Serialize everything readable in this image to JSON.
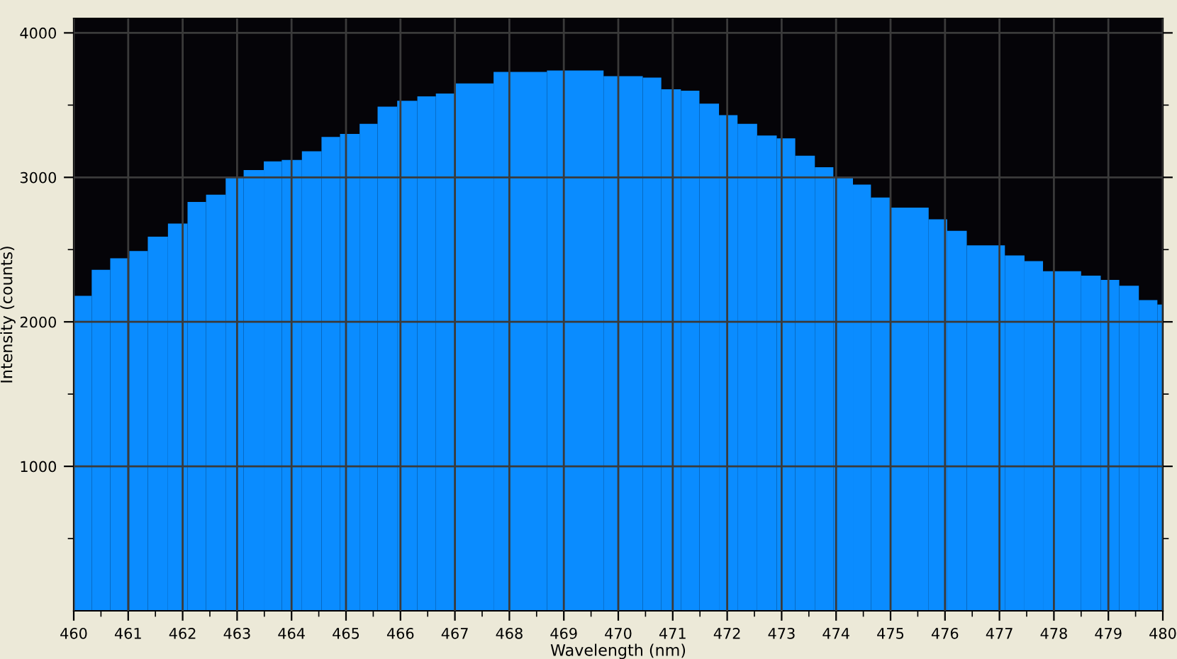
{
  "chart_data": {
    "type": "histogram",
    "xlabel": "Wavelength (nm)",
    "ylabel": "Intensity (counts)",
    "bins": [
      460.0,
      460.33,
      460.67,
      461.02,
      461.36,
      461.73,
      462.09,
      462.43,
      462.79,
      463.12,
      463.49,
      463.82,
      464.19,
      464.55,
      464.89,
      465.25,
      465.58,
      465.94,
      466.31,
      466.65,
      467.0,
      467.71,
      468.69,
      469.73,
      470.45,
      470.79,
      471.15,
      471.49,
      471.85,
      472.19,
      472.55,
      472.91,
      473.25,
      473.61,
      473.95,
      474.31,
      474.64,
      475.0,
      475.7,
      476.04,
      476.4,
      477.1,
      477.46,
      477.8,
      478.5,
      478.86,
      479.2,
      479.56,
      479.9,
      480.0
    ],
    "values": [
      2180,
      2360,
      2440,
      2490,
      2590,
      2680,
      2830,
      2880,
      3000,
      3050,
      3110,
      3120,
      3180,
      3280,
      3300,
      3370,
      3490,
      3530,
      3560,
      3580,
      3650,
      3730,
      3740,
      3700,
      3690,
      3610,
      3600,
      3510,
      3430,
      3370,
      3290,
      3270,
      3150,
      3070,
      3000,
      2950,
      2860,
      2790,
      2710,
      2630,
      2530,
      2460,
      2420,
      2350,
      2320,
      2290,
      2250,
      2150,
      2120
    ],
    "color": "#0a8cff",
    "xlim": [
      460,
      480
    ],
    "ylim": [
      0,
      4100
    ],
    "xticks": [
      460,
      {
        "value": 460.5,
        "label": null
      },
      461,
      {
        "value": 461.5,
        "label": null
      },
      462,
      {
        "value": 462.5,
        "label": null
      },
      463,
      {
        "value": 463.5,
        "label": null
      },
      464,
      {
        "value": 464.5,
        "label": null
      },
      465,
      {
        "value": 465.5,
        "label": null
      },
      466,
      {
        "value": 466.5,
        "label": null
      },
      467,
      {
        "value": 467.5,
        "label": null
      },
      468,
      {
        "value": 468.5,
        "label": null
      },
      469,
      {
        "value": 469.5,
        "label": null
      },
      470,
      {
        "value": 470.5,
        "label": null
      },
      471,
      {
        "value": 471.5,
        "label": null
      },
      472,
      {
        "value": 472.5,
        "label": null
      },
      473,
      {
        "value": 473.5,
        "label": null
      },
      474,
      {
        "value": 474.5,
        "label": null
      },
      475,
      {
        "value": 475.5,
        "label": null
      },
      476,
      {
        "value": 476.5,
        "label": null
      },
      477,
      {
        "value": 477.5,
        "label": null
      },
      478,
      {
        "value": 478.5,
        "label": null
      },
      479,
      {
        "value": 479.5,
        "label": null
      },
      480
    ],
    "yticks": [
      {
        "value": 500,
        "label": null
      },
      1000,
      {
        "value": 1500,
        "label": null
      },
      2000,
      {
        "value": 2500,
        "label": null
      },
      3000,
      {
        "value": 3500,
        "label": null
      },
      4000
    ],
    "grid": true
  }
}
